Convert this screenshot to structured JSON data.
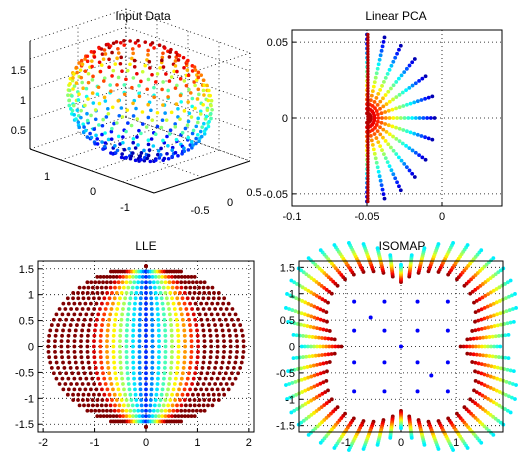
{
  "figure": {
    "background": "#ffffff"
  },
  "chart_data": [
    {
      "id": "input",
      "type": "scatter3d",
      "title": "Input Data",
      "description": "Points sampled on an open sphere (severed sphere), colored by height",
      "z_ticks": [
        "0.5",
        "1",
        "1.5"
      ],
      "x_ticks": [
        "1",
        "0",
        "-1"
      ],
      "y_ticks": [
        "-0.5",
        "0",
        "0.5"
      ],
      "xlim": [
        -1,
        1
      ],
      "ylim": [
        -1,
        1
      ],
      "zlim": [
        0,
        1.8
      ],
      "colormap": "jet"
    },
    {
      "id": "pca",
      "type": "scatter",
      "title": "Linear PCA",
      "xlim": [
        -0.1,
        0.04
      ],
      "ylim": [
        -0.058,
        0.058
      ],
      "x_ticks": [
        -0.1,
        -0.05,
        0
      ],
      "x_tick_labels": [
        "-0.1",
        "-0.05",
        "0"
      ],
      "y_ticks": [
        -0.05,
        0,
        0.05
      ],
      "y_tick_labels": [
        "-0.05",
        "0",
        "0.05"
      ],
      "grid": true,
      "spoke_count": 13,
      "points_per_spoke": 18,
      "fan_origin": [
        -0.05,
        0.0
      ],
      "fan_radius": 0.055,
      "colormap": "jet"
    },
    {
      "id": "lle",
      "type": "scatter",
      "title": "LLE",
      "xlim": [
        -2.1,
        2.1
      ],
      "ylim": [
        -1.65,
        1.65
      ],
      "x_ticks": [
        -2,
        -1,
        0,
        1,
        2
      ],
      "x_tick_labels": [
        "-2",
        "-1",
        "0",
        "1",
        "2"
      ],
      "y_ticks": [
        -1.5,
        -1,
        -0.5,
        0,
        0.5,
        1,
        1.5
      ],
      "y_tick_labels": [
        "-1.5",
        "-1",
        "-0.5",
        "0",
        "0.5",
        "1",
        "1.5"
      ],
      "grid": true,
      "meridians": 31,
      "points_per_meridian": 31,
      "half_width": 1.9,
      "half_height": 1.55,
      "colormap": "jet"
    },
    {
      "id": "isomap",
      "type": "scatter",
      "title": "ISOMAP",
      "xlim": [
        -1.85,
        1.85
      ],
      "ylim": [
        -1.62,
        1.62
      ],
      "x_ticks": [
        -1,
        0,
        1
      ],
      "x_tick_labels": [
        "-1",
        "0",
        "1"
      ],
      "y_ticks": [
        -1.5,
        -1,
        -0.5,
        0,
        0.5,
        1,
        1.5
      ],
      "y_tick_labels": [
        "-1.5",
        "-1",
        "-0.5",
        "0",
        "0.5",
        "1",
        "1.5"
      ],
      "grid": true,
      "spokes": 56,
      "points_per_spoke": 14,
      "inner_radius": [
        1.08,
        1.22
      ],
      "outer_radius": [
        1.8,
        1.55
      ],
      "interior_points": [
        [
          -0.85,
          0.85
        ],
        [
          -0.3,
          0.85
        ],
        [
          0.3,
          0.85
        ],
        [
          0.85,
          0.85
        ],
        [
          -0.85,
          0.3
        ],
        [
          -0.3,
          0.3
        ],
        [
          0.3,
          0.3
        ],
        [
          0.85,
          0.3
        ],
        [
          -0.85,
          -0.3
        ],
        [
          -0.3,
          -0.3
        ],
        [
          0.3,
          -0.3
        ],
        [
          0.85,
          -0.3
        ],
        [
          -0.85,
          -0.85
        ],
        [
          -0.3,
          -0.85
        ],
        [
          0.3,
          -0.85
        ],
        [
          0.85,
          -0.85
        ],
        [
          0,
          0
        ],
        [
          -0.55,
          0.55
        ],
        [
          0.55,
          -0.55
        ]
      ],
      "colormap": "jet"
    }
  ]
}
